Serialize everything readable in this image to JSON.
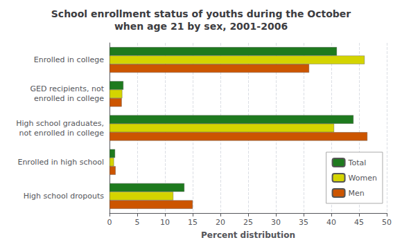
{
  "chart_data": {
    "type": "bar",
    "orientation": "horizontal",
    "title": "School enrollment status of youths during the October\nwhen age 21 by sex, 2001-2006",
    "categories": [
      "Enrolled in college",
      "GED recipients, not\nenrolled in college",
      "High school graduates,\nnot enrolled in college",
      "Enrolled in high school",
      "High school dropouts"
    ],
    "series": [
      {
        "name": "Total",
        "color": "#1e7a1e",
        "values": [
          41,
          2.5,
          44,
          1.0,
          13.5
        ]
      },
      {
        "name": "Women",
        "color": "#d4d400",
        "values": [
          46,
          2.3,
          40.5,
          0.8,
          11.5
        ]
      },
      {
        "name": "Men",
        "color": "#cc5500",
        "values": [
          36,
          2.2,
          46.5,
          1.1,
          15.0
        ]
      }
    ],
    "xlabel": "Percent distribution",
    "xlim": [
      0,
      50
    ],
    "xticks": [
      0,
      5,
      10,
      15,
      20,
      25,
      30,
      35,
      40,
      45,
      50
    ],
    "grid": true,
    "legend": "lower right"
  }
}
